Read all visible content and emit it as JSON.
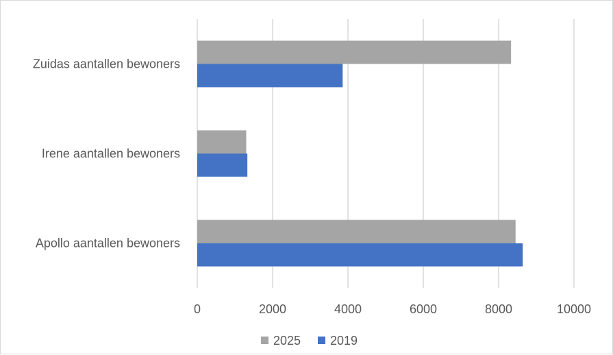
{
  "chart_data": {
    "type": "bar",
    "orientation": "horizontal",
    "categories": [
      "Apollo aantallen bewoners",
      "Irene aantallen  bewoners",
      "Zuidas aantallen bewoners"
    ],
    "series": [
      {
        "name": "2025",
        "color": "#a5a5a5",
        "values": [
          8450,
          1300,
          8330
        ]
      },
      {
        "name": "2019",
        "color": "#4472c4",
        "values": [
          8640,
          1330,
          3860
        ]
      }
    ],
    "xlim": [
      0,
      10000
    ],
    "xticks": [
      "0",
      "2000",
      "4000",
      "6000",
      "8000",
      "10000"
    ],
    "grid": true,
    "legend_position": "bottom"
  }
}
